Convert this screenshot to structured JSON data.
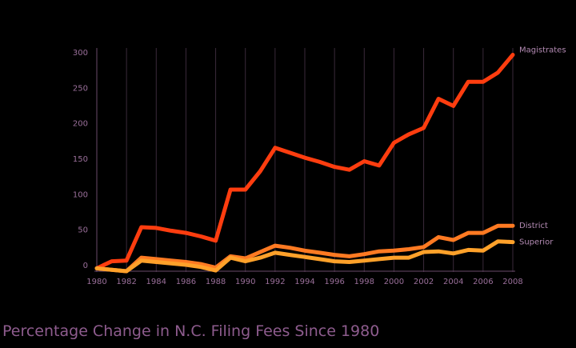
{
  "chart_data": {
    "type": "line",
    "title": "Percentage Change in N.C. Filing Fees Since 1980",
    "xlabel": "",
    "ylabel": "",
    "xlim": [
      1980,
      2008
    ],
    "ylim": [
      0,
      300
    ],
    "x_ticks": [
      "1980",
      "1982",
      "1984",
      "1986",
      "1988",
      "1990",
      "1992",
      "1994",
      "1996",
      "1998",
      "2000",
      "2002",
      "2004",
      "2006",
      "2008"
    ],
    "y_ticks": [
      "0",
      "50",
      "100",
      "150",
      "200",
      "250",
      "300"
    ],
    "grid": "vertical",
    "x": [
      1980,
      1981,
      1982,
      1983,
      1984,
      1985,
      1986,
      1987,
      1988,
      1989,
      1990,
      1991,
      1992,
      1993,
      1994,
      1995,
      1996,
      1997,
      1998,
      1999,
      2000,
      2001,
      2002,
      2003,
      2004,
      2005,
      2006,
      2007,
      2008
    ],
    "series": [
      {
        "name": "Magistrates",
        "color": "#ff3d0f",
        "values": [
          -5,
          5,
          6,
          53,
          52,
          48,
          45,
          40,
          34,
          106,
          106,
          132,
          165,
          158,
          151,
          145,
          138,
          134,
          146,
          140,
          172,
          184,
          193,
          234,
          224,
          258,
          258,
          271,
          296
        ]
      },
      {
        "name": "District",
        "color": "#ff7a22",
        "values": [
          -5,
          -7,
          -9,
          10,
          8,
          6,
          4,
          1,
          -4,
          12,
          9,
          18,
          27,
          24,
          20,
          17,
          14,
          12,
          15,
          19,
          20,
          22,
          25,
          39,
          35,
          45,
          45,
          55,
          55
        ]
      },
      {
        "name": "Superior",
        "color": "#ffa12a",
        "values": [
          -5,
          -7,
          -9,
          6,
          4,
          2,
          0,
          -3,
          -8,
          10,
          5,
          10,
          17,
          14,
          11,
          8,
          5,
          4,
          6,
          8,
          10,
          10,
          18,
          19,
          16,
          21,
          20,
          33,
          32
        ]
      }
    ]
  }
}
